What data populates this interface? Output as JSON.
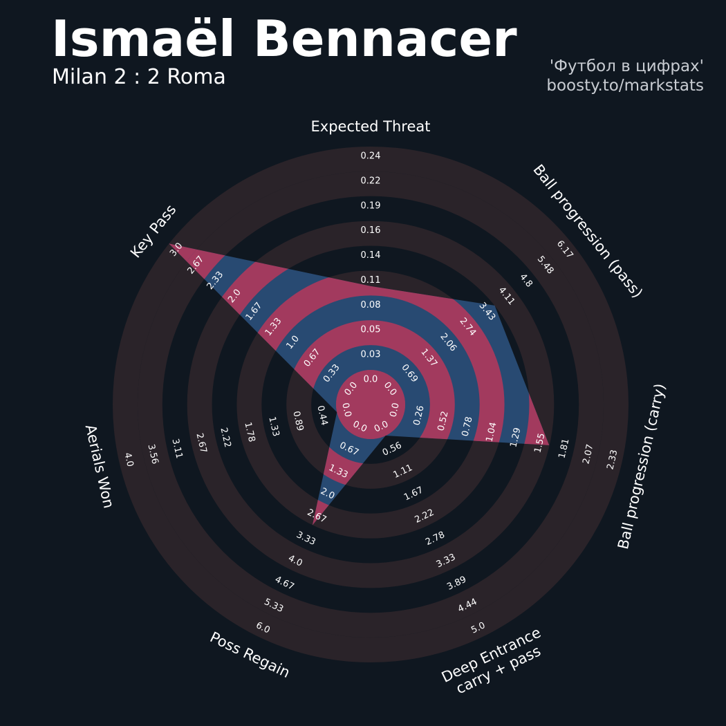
{
  "header": {
    "title": "Ismaël Bennacer",
    "subtitle": "Milan 2 : 2 Roma",
    "credit_line1": "'Футбол в цифрах'",
    "credit_line2": "boosty.to/markstats"
  },
  "colors": {
    "background": "#0f1720",
    "ring_band": "#2a2329",
    "player_fill_blue": "#284a72",
    "player_fill_pink": "#a23a5e",
    "text": "#ffffff"
  },
  "chart_data": {
    "type": "radar",
    "params": [
      {
        "name": "Expected Threat",
        "value": 0.09,
        "ticks": [
          "0.0",
          "0.03",
          "0.05",
          "0.08",
          "0.11",
          "0.14",
          "0.16",
          "0.19",
          "0.22",
          "0.24"
        ]
      },
      {
        "name": "Ball progression (pass)",
        "value": 3.43,
        "ticks": [
          "0.0",
          "0.69",
          "1.37",
          "2.06",
          "2.74",
          "3.43",
          "4.11",
          "4.8",
          "5.48",
          "6.17"
        ]
      },
      {
        "name": "Ball progression (carry)",
        "value": 1.55,
        "ticks": [
          "0.0",
          "0.26",
          "0.52",
          "0.78",
          "1.04",
          "1.29",
          "1.55",
          "1.81",
          "2.07",
          "2.33"
        ]
      },
      {
        "name": "Deep Entrance\ncarry + pass",
        "value": 0.0,
        "ticks": [
          "0.0",
          "0.56",
          "1.11",
          "1.67",
          "2.22",
          "2.78",
          "3.33",
          "3.89",
          "4.44",
          "5.0"
        ]
      },
      {
        "name": "Poss Regain",
        "value": 2.67,
        "ticks": [
          "0.0",
          "0.67",
          "1.33",
          "2.0",
          "2.67",
          "3.33",
          "4.0",
          "4.67",
          "5.33",
          "6.0"
        ]
      },
      {
        "name": "Aerials Won",
        "value": 0.0,
        "ticks": [
          "0.0",
          "0.44",
          "0.89",
          "1.33",
          "1.78",
          "2.22",
          "2.67",
          "3.11",
          "3.56",
          "4.0"
        ]
      },
      {
        "name": "Key Pass",
        "value": 3.0,
        "ticks": [
          "0.0",
          "0.33",
          "0.67",
          "1.0",
          "1.33",
          "1.67",
          "2.0",
          "2.33",
          "2.67",
          "3.0"
        ]
      }
    ],
    "grid": false,
    "legend": "none"
  }
}
